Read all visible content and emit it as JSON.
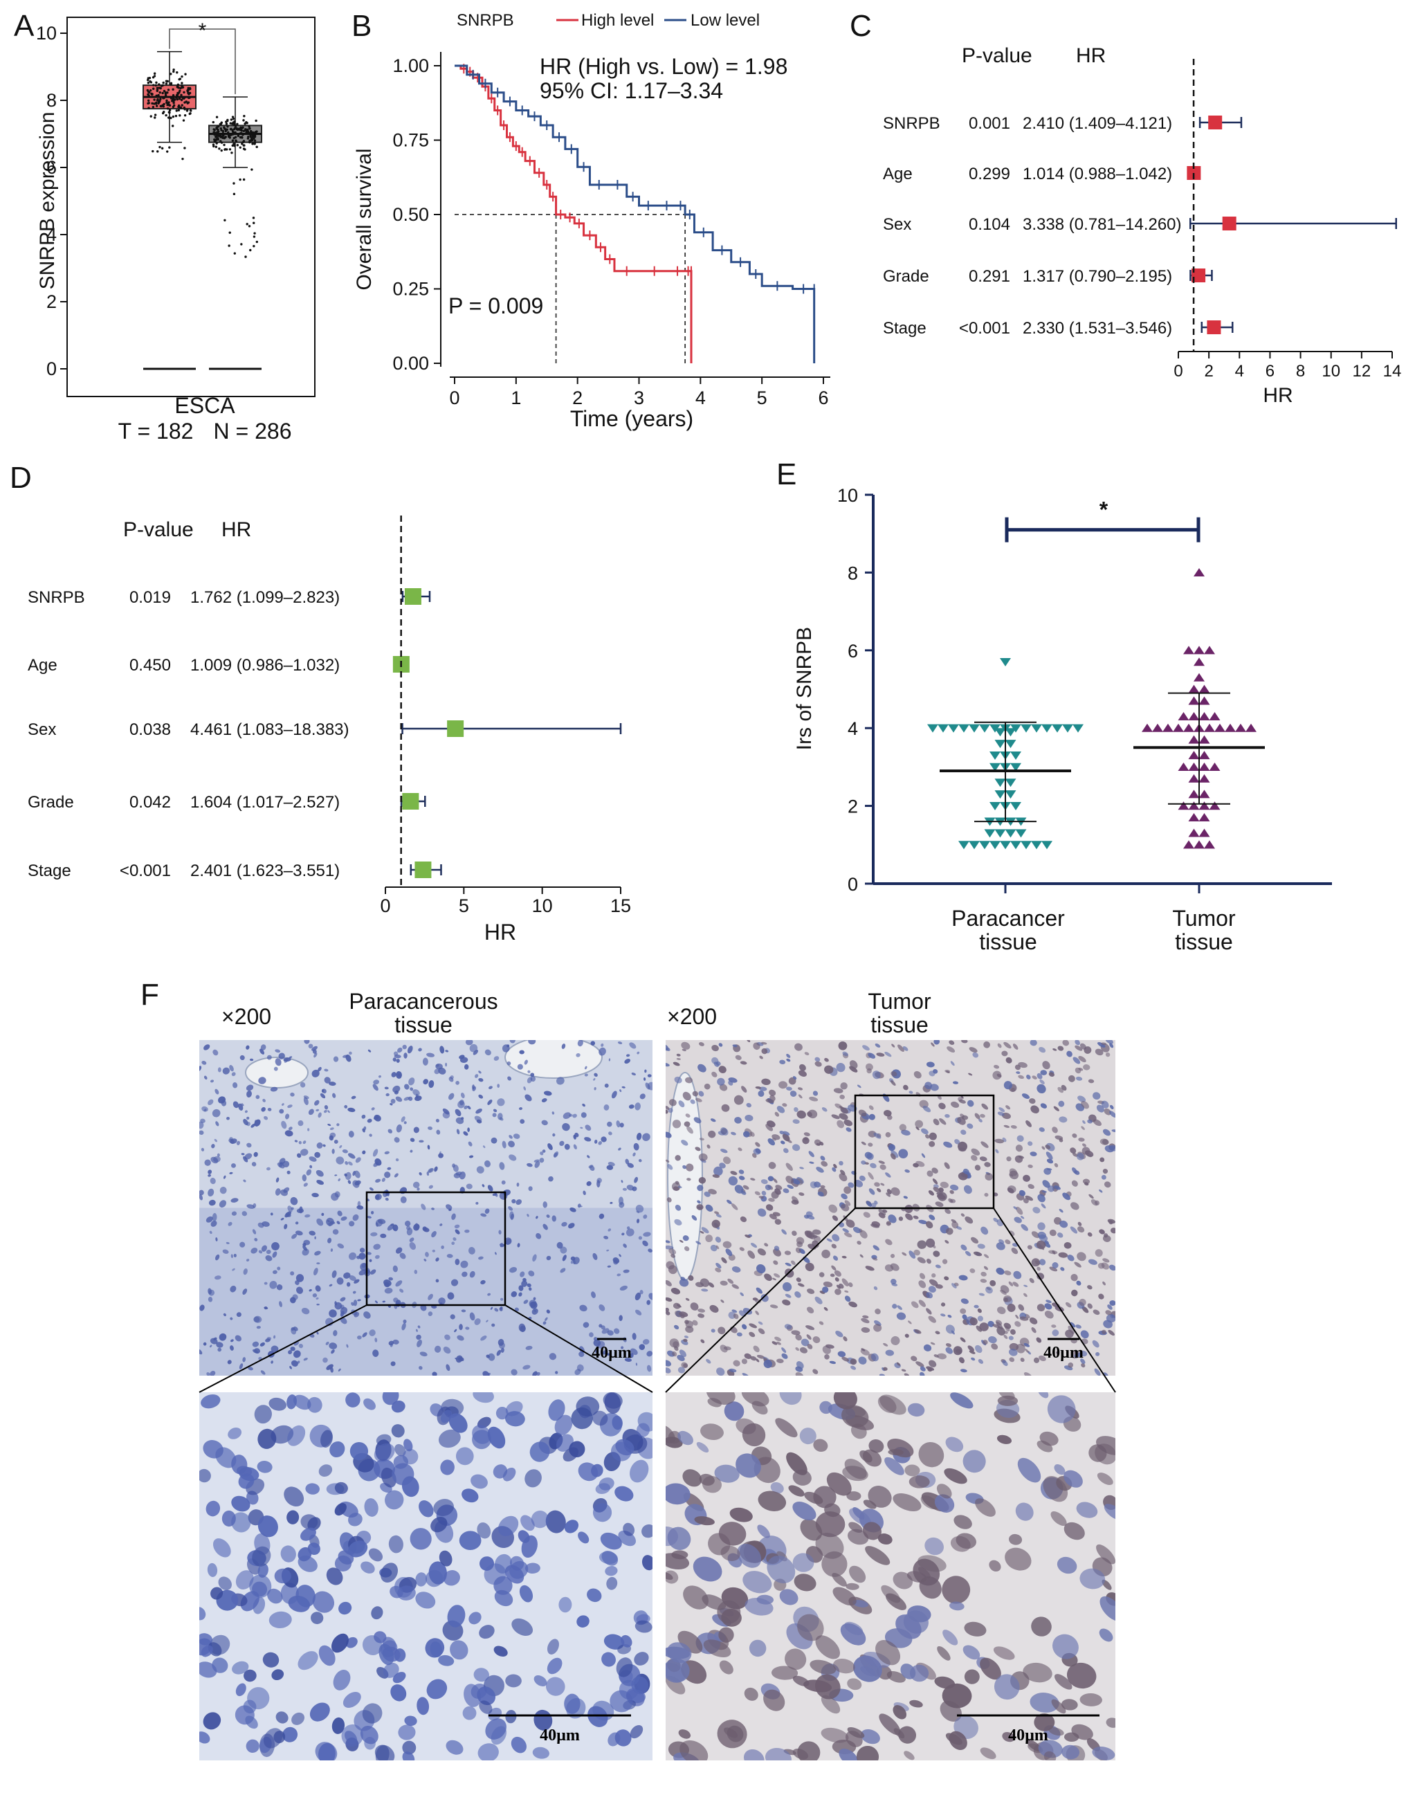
{
  "panels": {
    "A": "A",
    "B": "B",
    "C": "C",
    "D": "D",
    "E": "E",
    "F": "F"
  },
  "chart_data": [
    {
      "id": "A",
      "type": "box",
      "ylabel": "SNRPB expression",
      "xlabel": "ESCA",
      "sublabel_t": "T = 182",
      "sublabel_n": "N = 286",
      "ylim": [
        0,
        10
      ],
      "yticks": [
        0,
        2,
        4,
        6,
        8,
        10
      ],
      "significance": "*",
      "groups": [
        {
          "name": "T",
          "n": 182,
          "median": 8.1,
          "q1": 7.75,
          "q3": 8.45,
          "whisker_low": 6.75,
          "whisker_high": 9.45,
          "color": "#e8676a"
        },
        {
          "name": "N",
          "n": 286,
          "median": 7.0,
          "q1": 6.75,
          "q3": 7.25,
          "whisker_low": 6.0,
          "whisker_high": 8.1,
          "color": "#8a8a8a"
        }
      ]
    },
    {
      "id": "B",
      "type": "line",
      "legend_title": "SNRPB",
      "ylabel": "Overall survival",
      "xlabel": "Time (years)",
      "xlim": [
        0,
        6.2
      ],
      "ylim": [
        0,
        1.0
      ],
      "xticks": [
        0,
        1,
        2,
        3,
        4,
        5,
        6
      ],
      "yticks": [
        "0.00",
        "0.25",
        "0.50",
        "0.75",
        "1.00"
      ],
      "hr_text": "HR (High vs. Low) = 1.98",
      "ci_text": "95% CI: 1.17–3.34",
      "p_text": "P = 0.009",
      "median_high": 1.65,
      "median_low": 3.75,
      "series": [
        {
          "name": "High level",
          "color": "#d8323f",
          "x": [
            0,
            0.1,
            0.2,
            0.3,
            0.45,
            0.55,
            0.65,
            0.75,
            0.85,
            0.95,
            1.05,
            1.15,
            1.3,
            1.45,
            1.55,
            1.65,
            1.8,
            1.95,
            2.1,
            2.3,
            2.45,
            2.6,
            3.0,
            3.5,
            3.75,
            3.85,
            3.85
          ],
          "y": [
            1.0,
            0.99,
            0.98,
            0.96,
            0.93,
            0.89,
            0.85,
            0.8,
            0.76,
            0.73,
            0.71,
            0.68,
            0.64,
            0.6,
            0.56,
            0.5,
            0.49,
            0.47,
            0.43,
            0.39,
            0.35,
            0.31,
            0.31,
            0.31,
            0.31,
            0.31,
            0.0
          ]
        },
        {
          "name": "Low level",
          "color": "#2b4d89",
          "x": [
            0,
            0.2,
            0.4,
            0.6,
            0.8,
            1.0,
            1.2,
            1.4,
            1.6,
            1.8,
            2.0,
            2.2,
            2.5,
            2.8,
            3.0,
            3.3,
            3.6,
            3.75,
            3.9,
            4.2,
            4.5,
            4.8,
            5.0,
            5.5,
            5.85,
            5.85
          ],
          "y": [
            1.0,
            0.97,
            0.94,
            0.91,
            0.88,
            0.85,
            0.83,
            0.8,
            0.76,
            0.72,
            0.66,
            0.6,
            0.6,
            0.56,
            0.53,
            0.53,
            0.53,
            0.5,
            0.44,
            0.38,
            0.34,
            0.3,
            0.26,
            0.25,
            0.25,
            0.0
          ]
        }
      ]
    },
    {
      "id": "C",
      "type": "forest",
      "col_p": "P-value",
      "col_hr": "HR",
      "xlabel": "HR",
      "xlim": [
        0,
        14
      ],
      "xticks": [
        0,
        2,
        4,
        6,
        8,
        10,
        12,
        14
      ],
      "ref": 1,
      "color": "#d8323f",
      "rows": [
        {
          "name": "SNRPB",
          "p": "0.001",
          "hr_text": "2.410 (1.409–4.121)",
          "hr": 2.41,
          "lo": 1.409,
          "hi": 4.121
        },
        {
          "name": "Age",
          "p": "0.299",
          "hr_text": "1.014 (0.988–1.042)",
          "hr": 1.014,
          "lo": 0.988,
          "hi": 1.042
        },
        {
          "name": "Sex",
          "p": "0.104",
          "hr_text": "3.338 (0.781–14.260)",
          "hr": 3.338,
          "lo": 0.781,
          "hi": 14.26
        },
        {
          "name": "Grade",
          "p": "0.291",
          "hr_text": "1.317 (0.790–2.195)",
          "hr": 1.317,
          "lo": 0.79,
          "hi": 2.195
        },
        {
          "name": "Stage",
          "p": "<0.001",
          "hr_text": "2.330 (1.531–3.546)",
          "hr": 2.33,
          "lo": 1.531,
          "hi": 3.546
        }
      ]
    },
    {
      "id": "D",
      "type": "forest",
      "col_p": "P-value",
      "col_hr": "HR",
      "xlabel": "HR",
      "xlim": [
        0,
        15
      ],
      "xticks": [
        0,
        5,
        10,
        15
      ],
      "ref": 1,
      "color": "#7ab648",
      "rows": [
        {
          "name": "SNRPB",
          "p": "0.019",
          "hr_text": "1.762 (1.099–2.823)",
          "hr": 1.762,
          "lo": 1.099,
          "hi": 2.823
        },
        {
          "name": "Age",
          "p": "0.450",
          "hr_text": "1.009 (0.986–1.032)",
          "hr": 1.009,
          "lo": 0.986,
          "hi": 1.032
        },
        {
          "name": "Sex",
          "p": "0.038",
          "hr_text": "4.461 (1.083–18.383)",
          "hr": 4.461,
          "lo": 1.083,
          "hi": 18.383
        },
        {
          "name": "Grade",
          "p": "0.042",
          "hr_text": "1.604 (1.017–2.527)",
          "hr": 1.604,
          "lo": 1.017,
          "hi": 2.527
        },
        {
          "name": "Stage",
          "p": "<0.001",
          "hr_text": "2.401 (1.623–3.551)",
          "hr": 2.401,
          "lo": 1.623,
          "hi": 3.551
        }
      ]
    },
    {
      "id": "E",
      "type": "scatter",
      "ylabel": "Irs of SNRPB",
      "ylim": [
        0,
        10
      ],
      "yticks": [
        0,
        2,
        4,
        6,
        8,
        10
      ],
      "significance": "*",
      "groups": [
        {
          "name_line1": "Paracancer",
          "name_line2": "tissue",
          "marker": "triangle-down",
          "color": "#1f8a8c",
          "mean": 2.9,
          "sd_low": 1.6,
          "sd_high": 4.15,
          "values": [
            5.7,
            4.0,
            4.0,
            4.0,
            4.0,
            4.0,
            4.0,
            4.0,
            4.0,
            4.0,
            4.0,
            4.0,
            4.0,
            4.0,
            4.0,
            4.0,
            3.9,
            3.9,
            3.6,
            3.6,
            3.3,
            3.3,
            3.3,
            3.0,
            3.0,
            3.0,
            2.6,
            2.6,
            2.3,
            2.3,
            2.0,
            2.0,
            2.0,
            1.6,
            1.6,
            1.6,
            1.6,
            1.3,
            1.3,
            1.3,
            1.3,
            1.0,
            1.0,
            1.0,
            1.0,
            1.0,
            1.0,
            1.0,
            1.0,
            1.0
          ]
        },
        {
          "name_line1": "Tumor",
          "name_line2": "tissue",
          "marker": "triangle-up",
          "color": "#6b2467",
          "mean": 3.5,
          "sd_low": 2.05,
          "sd_high": 4.9,
          "values": [
            8.0,
            6.0,
            6.0,
            6.0,
            5.7,
            5.3,
            5.0,
            5.0,
            4.7,
            4.7,
            4.3,
            4.3,
            4.3,
            4.3,
            4.0,
            4.0,
            4.0,
            4.0,
            4.0,
            4.0,
            4.0,
            4.0,
            4.0,
            4.0,
            4.0,
            3.7,
            3.7,
            3.3,
            3.3,
            3.0,
            3.0,
            3.0,
            3.0,
            2.7,
            2.7,
            2.3,
            2.3,
            2.0,
            2.0,
            2.0,
            2.0,
            1.7,
            1.7,
            1.3,
            1.3,
            1.0,
            1.0,
            1.0
          ]
        }
      ]
    }
  ],
  "histology": {
    "mag_left": "×200",
    "mag_right": "×200",
    "title_left_line1": "Paracancerous",
    "title_left_line2": "tissue",
    "title_right_line1": "Tumor",
    "title_right_line2": "tissue",
    "scale_label": "40µm",
    "colors": {
      "normal_bg": "#cfd6e6",
      "normal_nuc": "#4d5ea8",
      "tumor_bg": "#ddd9dc",
      "tumor_nuc": "#6f6178"
    }
  }
}
